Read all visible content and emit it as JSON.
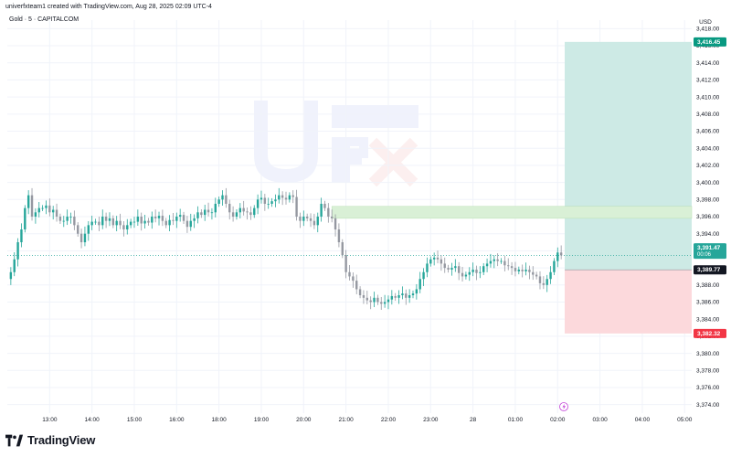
{
  "header": {
    "caption": "univerfxteam1 created with TradingView.com, Aug 28, 2025 02:09 UTC-4",
    "symbol": "Gold · 5 · CAPITALCOM"
  },
  "footer": {
    "brand": "TradingView"
  },
  "watermark": {
    "text": "Univer FX",
    "color": "#3b5bdb",
    "accent": "#e03131"
  },
  "colors": {
    "up": "#26a69a",
    "down": "#9598a1",
    "target_zone": "#cdeae5",
    "stop_zone": "#fcd9dc",
    "supply_zone": "#d9f0d6",
    "target_label": "#089981",
    "stop_label": "#f23645",
    "grid": "#f0f3fa"
  },
  "chart_data": {
    "type": "candlestick",
    "currency": "USD",
    "y_ticks": [
      "3,418.00",
      "3,416.00",
      "3,414.00",
      "3,412.00",
      "3,410.00",
      "3,408.00",
      "3,406.00",
      "3,404.00",
      "3,402.00",
      "3,400.00",
      "3,398.00",
      "3,396.00",
      "3,394.00",
      "3,392.00",
      "3,390.00",
      "3,388.00",
      "3,386.00",
      "3,384.00",
      "3,382.00",
      "3,380.00",
      "3,378.00",
      "3,376.00",
      "3,374.00"
    ],
    "y_tick_values": [
      3418,
      3416,
      3414,
      3412,
      3410,
      3408,
      3406,
      3404,
      3402,
      3400,
      3398,
      3396,
      3394,
      3392,
      3390,
      3388,
      3386,
      3384,
      3382,
      3380,
      3378,
      3376,
      3374
    ],
    "ylim": [
      3373,
      3419
    ],
    "x_ticks": [
      "13:00",
      "14:00",
      "15:00",
      "16:00",
      "18:00",
      "19:00",
      "20:00",
      "21:00",
      "22:00",
      "23:00",
      "28",
      "01:00",
      "02:00",
      "03:00",
      "04:00",
      "05:00"
    ],
    "x_tick_slots": [
      12,
      24,
      36,
      48,
      60,
      72,
      84,
      96,
      108,
      120,
      132,
      144,
      156,
      168,
      180,
      192
    ],
    "x_range_slots": [
      0,
      194
    ],
    "price_path": [
      3388.7,
      3389.5,
      3391,
      3393,
      3394.5,
      3397,
      3398.5,
      3396,
      3396.5,
      3397,
      3397,
      3397.3,
      3396.5,
      3396.8,
      3396,
      3395.5,
      3395.5,
      3396,
      3396,
      3395,
      3394,
      3393,
      3394,
      3395,
      3395.4,
      3395.4,
      3395,
      3396,
      3395.5,
      3395.8,
      3395,
      3395.5,
      3395,
      3394.5,
      3395,
      3395.4,
      3395.4,
      3396,
      3395.2,
      3395.5,
      3395.3,
      3396,
      3395.8,
      3396.1,
      3395.5,
      3395,
      3395.6,
      3395.5,
      3396,
      3396.2,
      3395.5,
      3394.8,
      3395.5,
      3395.8,
      3396.5,
      3396.2,
      3396.8,
      3396.5,
      3396.5,
      3397.5,
      3398,
      3398.5,
      3397.5,
      3396.5,
      3396,
      3396.5,
      3397,
      3396.6,
      3396.5,
      3396.2,
      3397,
      3398,
      3398.2,
      3397.5,
      3397.5,
      3397.8,
      3398,
      3398.5,
      3398.2,
      3398,
      3398.5,
      3398.3,
      3396,
      3395.5,
      3396,
      3395.8,
      3395.5,
      3395,
      3396,
      3397.5,
      3397,
      3396,
      3395.8,
      3394.5,
      3393,
      3391.5,
      3389.5,
      3389,
      3388.5,
      3387.5,
      3386.8,
      3386.5,
      3386.2,
      3386,
      3386.5,
      3386,
      3385.8,
      3386,
      3386.3,
      3386.7,
      3386.5,
      3386.8,
      3387,
      3386.5,
      3386.8,
      3387,
      3387.5,
      3388.7,
      3389.5,
      3390.5,
      3391,
      3391.2,
      3391,
      3390.5,
      3390,
      3389.8,
      3390,
      3390.2,
      3389.4,
      3389,
      3389.2,
      3389.5,
      3389.8,
      3389.4,
      3389.5,
      3390.2,
      3390.5,
      3390.8,
      3391,
      3390.8,
      3390.8,
      3390.3,
      3390.2,
      3390,
      3389.6,
      3389.8,
      3389.6,
      3389.8,
      3389.5,
      3389.2,
      3389,
      3388.2,
      3388,
      3388.7,
      3389.5,
      3390.8,
      3391.8,
      3391.47
    ],
    "last_price": "3,391.47",
    "countdown": "00:06",
    "entry_price": "3,389.77",
    "entry_value": 3389.77,
    "target_price": "3,416.45",
    "target_value": 3416.45,
    "stop_price": "3,382.32",
    "stop_value": 3382.32,
    "supply_zone": [
      3395.8,
      3397.2
    ],
    "position_start_slot": 158
  }
}
